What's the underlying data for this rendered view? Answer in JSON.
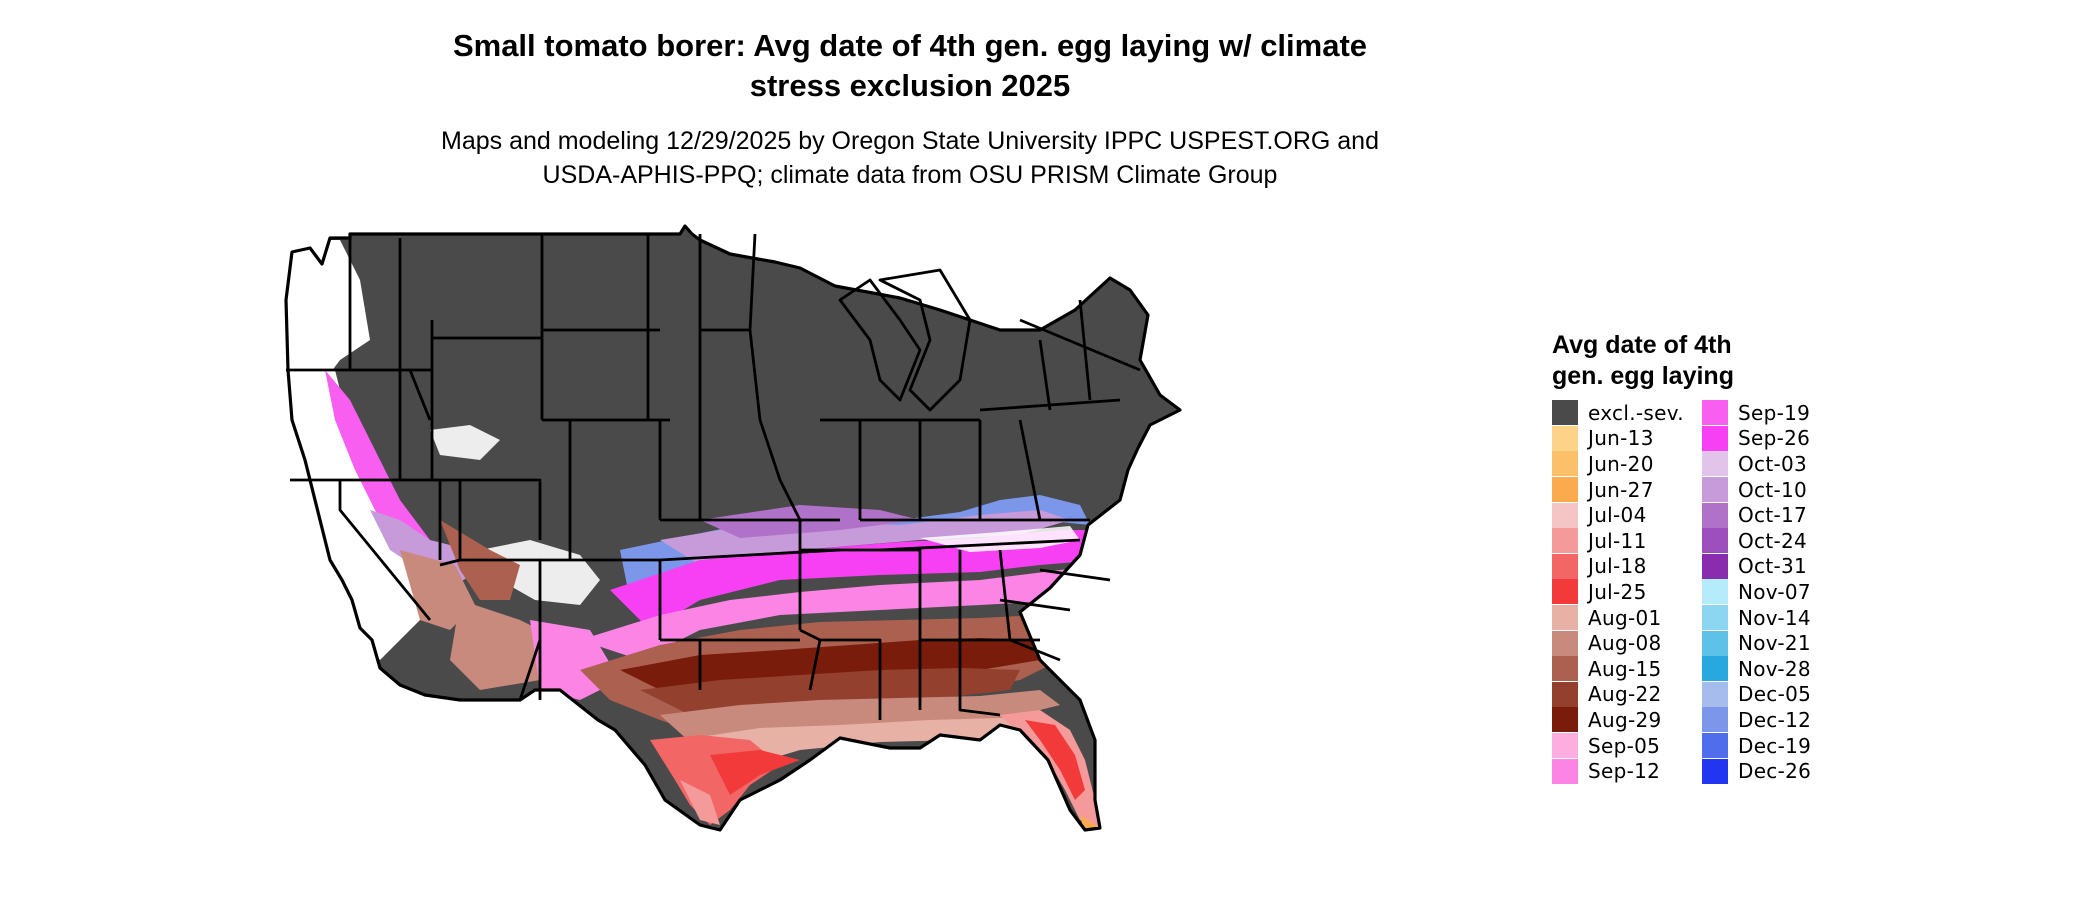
{
  "title_line1": "Small tomato borer: Avg date of 4th gen. egg laying w/ climate",
  "title_line2": "stress exclusion 2025",
  "subtitle_line1": "Maps and modeling 12/29/2025 by Oregon State University IPPC USPEST.ORG and",
  "subtitle_line2": "USDA-APHIS-PPQ; climate data from OSU PRISM Climate Group",
  "legend": {
    "title_line1": "Avg date of 4th",
    "title_line2": "gen. egg laying",
    "items": [
      {
        "label": "excl.-sev.",
        "color": "#4a4a4a"
      },
      {
        "label": "Jun-13",
        "color": "#fdd38a"
      },
      {
        "label": "Jun-20",
        "color": "#fcc06a"
      },
      {
        "label": "Jun-27",
        "color": "#fbab4e"
      },
      {
        "label": "Jul-04",
        "color": "#f5c4c4"
      },
      {
        "label": "Jul-11",
        "color": "#f49a9a"
      },
      {
        "label": "Jul-18",
        "color": "#f26666"
      },
      {
        "label": "Jul-25",
        "color": "#f23a3a"
      },
      {
        "label": "Aug-01",
        "color": "#e7b1a6"
      },
      {
        "label": "Aug-08",
        "color": "#c98a7e"
      },
      {
        "label": "Aug-15",
        "color": "#ac6050"
      },
      {
        "label": "Aug-22",
        "color": "#94402f"
      },
      {
        "label": "Aug-29",
        "color": "#7a1c0c"
      },
      {
        "label": "Sep-05",
        "color": "#fcaee0"
      },
      {
        "label": "Sep-12",
        "color": "#fb84e4"
      },
      {
        "label": "Sep-19",
        "color": "#f85ef0"
      },
      {
        "label": "Sep-26",
        "color": "#f73ff3"
      },
      {
        "label": "Oct-03",
        "color": "#e2c3ea"
      },
      {
        "label": "Oct-10",
        "color": "#c79ad9"
      },
      {
        "label": "Oct-17",
        "color": "#b072c8"
      },
      {
        "label": "Oct-24",
        "color": "#9d4fbd"
      },
      {
        "label": "Oct-31",
        "color": "#8a2cae"
      },
      {
        "label": "Nov-07",
        "color": "#b4ecfb"
      },
      {
        "label": "Nov-14",
        "color": "#8cd6f1"
      },
      {
        "label": "Nov-21",
        "color": "#5ec1e8"
      },
      {
        "label": "Nov-28",
        "color": "#27a8de"
      },
      {
        "label": "Dec-05",
        "color": "#a5bcec"
      },
      {
        "label": "Dec-12",
        "color": "#7c97ea"
      },
      {
        "label": "Dec-19",
        "color": "#506eec"
      },
      {
        "label": "Dec-26",
        "color": "#2236f2"
      }
    ]
  }
}
